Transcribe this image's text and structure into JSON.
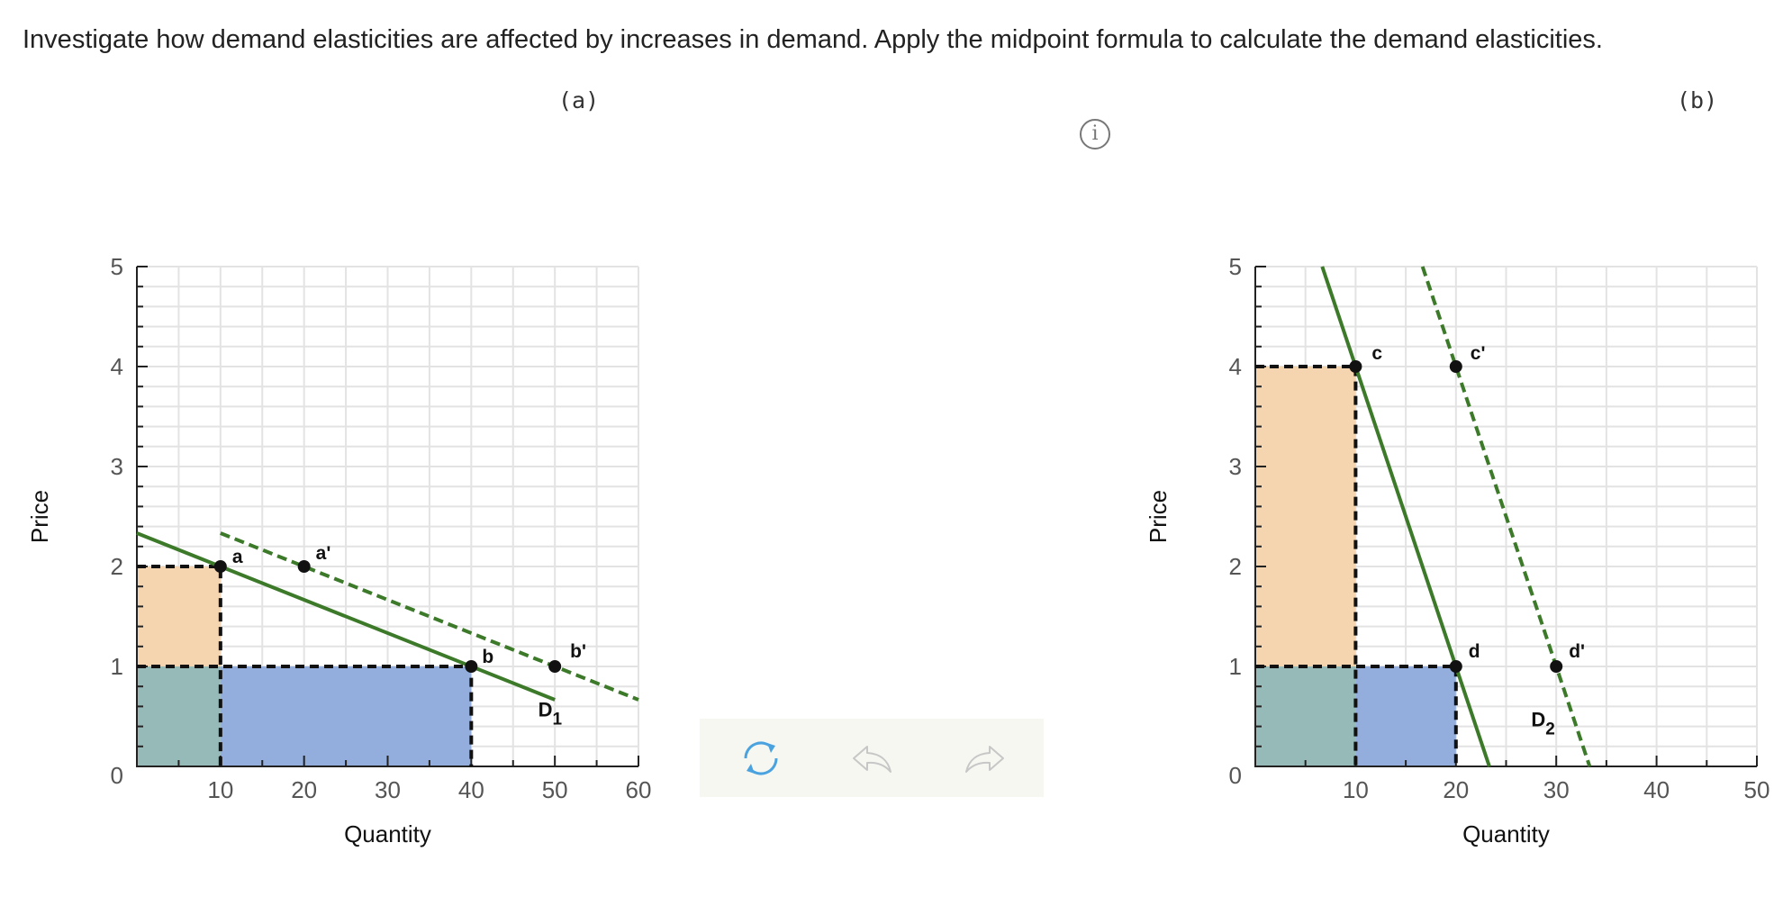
{
  "prompt": "Investigate how demand elasticities are affected by increases in demand. Apply the midpoint formula to calculate the demand elasticities.",
  "info_icon_glyph": "i",
  "colors": {
    "demand_line": "#3c7a2a",
    "revenue_orange": "#f5d5b0",
    "revenue_teal": "#96bab8",
    "revenue_blue": "#93aedc",
    "grid": "#e3e3e3",
    "point": "#111111",
    "toolbar_active": "#4aa3df",
    "toolbar_inactive": "#c7c7c7"
  },
  "toolbar": {
    "reset_icon": "refresh-icon",
    "undo_icon": "undo-icon",
    "redo_icon": "redo-icon"
  },
  "chart_data": [
    {
      "panel_label": "(a)",
      "type": "line",
      "xlabel": "Quantity",
      "ylabel": "Price",
      "xlim": [
        0,
        60
      ],
      "ylim": [
        0,
        5
      ],
      "x_ticks": [
        10,
        20,
        30,
        40,
        50,
        60
      ],
      "y_ticks": [
        0,
        1,
        2,
        3,
        4,
        5
      ],
      "y_minor_step": 0.2,
      "series": [
        {
          "name": "D1",
          "label_main": "D",
          "label_sub": "1",
          "style": "solid",
          "points": [
            [
              0,
              2.333
            ],
            [
              50,
              0.667
            ]
          ]
        },
        {
          "name": "",
          "style": "dashed",
          "points": [
            [
              10,
              2.333
            ],
            [
              60,
              0.667
            ]
          ]
        }
      ],
      "points": [
        {
          "name": "a",
          "x": 10,
          "y": 2
        },
        {
          "name": "b",
          "x": 40,
          "y": 1
        },
        {
          "name": "a'",
          "x": 20,
          "y": 2
        },
        {
          "name": "b'",
          "x": 50,
          "y": 1
        }
      ],
      "shaded": [
        {
          "color": "revenue_orange",
          "x": [
            0,
            10
          ],
          "y": [
            1,
            2
          ]
        },
        {
          "color": "revenue_teal",
          "x": [
            0,
            10
          ],
          "y": [
            0,
            1
          ]
        },
        {
          "color": "revenue_blue",
          "x": [
            10,
            40
          ],
          "y": [
            0,
            1
          ]
        }
      ],
      "guides": [
        {
          "points": [
            [
              0,
              2
            ],
            [
              10,
              2
            ],
            [
              10,
              0
            ]
          ]
        },
        {
          "points": [
            [
              0,
              1
            ],
            [
              40,
              1
            ],
            [
              40,
              0
            ]
          ]
        }
      ]
    },
    {
      "panel_label": "(b)",
      "type": "line",
      "xlabel": "Quantity",
      "ylabel": "Price",
      "xlim": [
        0,
        50
      ],
      "ylim": [
        0,
        5
      ],
      "x_ticks": [
        10,
        20,
        30,
        40,
        50
      ],
      "y_ticks": [
        0,
        1,
        2,
        3,
        4,
        5
      ],
      "y_minor_step": 0.2,
      "series": [
        {
          "name": "D2",
          "label_main": "D",
          "label_sub": "2",
          "style": "solid",
          "points": [
            [
              6.67,
              5
            ],
            [
              23.33,
              0
            ]
          ]
        },
        {
          "name": "",
          "style": "dashed",
          "points": [
            [
              16.67,
              5
            ],
            [
              33.33,
              0
            ]
          ]
        }
      ],
      "points": [
        {
          "name": "c",
          "x": 10,
          "y": 4
        },
        {
          "name": "d",
          "x": 20,
          "y": 1
        },
        {
          "name": "c'",
          "x": 20,
          "y": 4
        },
        {
          "name": "d'",
          "x": 30,
          "y": 1
        }
      ],
      "shaded": [
        {
          "color": "revenue_orange",
          "x": [
            0,
            10
          ],
          "y": [
            1,
            4
          ]
        },
        {
          "color": "revenue_teal",
          "x": [
            0,
            10
          ],
          "y": [
            0,
            1
          ]
        },
        {
          "color": "revenue_blue",
          "x": [
            10,
            20
          ],
          "y": [
            0,
            1
          ]
        }
      ],
      "guides": [
        {
          "points": [
            [
              0,
              4
            ],
            [
              10,
              4
            ],
            [
              10,
              0
            ]
          ]
        },
        {
          "points": [
            [
              0,
              1
            ],
            [
              20,
              1
            ],
            [
              20,
              0
            ]
          ]
        }
      ]
    }
  ]
}
